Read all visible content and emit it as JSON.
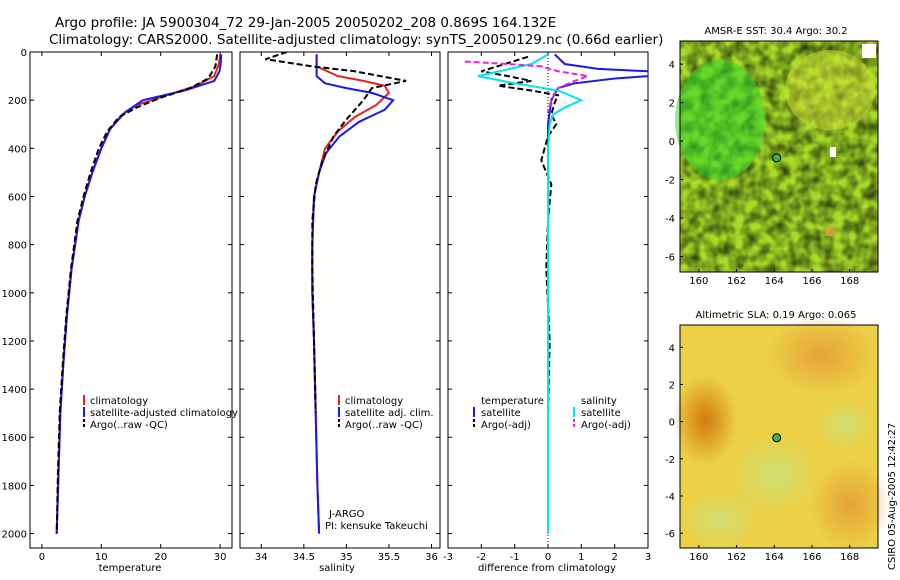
{
  "header": {
    "title_line1": "Argo profile: JA 5900304_72 29-Jan-2005 20050202_208 0.869S 164.132E",
    "title_line2": "Climatology: CARS2000. Satellite-adjusted climatology: synTS_20050129.nc (0.66d earlier)"
  },
  "credit": "CSIRO 05-Aug-2005 12:42:27",
  "colors": {
    "clim": "#e8201e",
    "sat": "#1a1ae6",
    "argo": "#000000",
    "sal_sat": "#00e8ee",
    "sal_argo": "#ee22dd"
  },
  "chart_data": [
    {
      "type": "line",
      "name": "temperature",
      "xlabel": "temperature",
      "xlim": [
        -2,
        32
      ],
      "ylim": [
        2060,
        0
      ],
      "xticks": [
        0,
        10,
        20,
        30
      ],
      "yticks": [
        0,
        200,
        400,
        600,
        800,
        1000,
        1200,
        1400,
        1600,
        1800,
        2000
      ],
      "legend": [
        "climatology",
        "satellite-adjusted climatology",
        "Argo(..raw -QC)"
      ],
      "series": [
        {
          "name": "climatology",
          "color": "clim",
          "dash": "",
          "x": [
            30.0,
            29.8,
            29.0,
            26.0,
            21.0,
            16.0,
            13.5,
            11.5,
            10.0,
            8.5,
            7.2,
            6.2,
            5.0,
            4.2,
            3.6,
            3.1,
            2.8,
            2.5
          ],
          "y": [
            10,
            50,
            100,
            140,
            180,
            220,
            260,
            320,
            400,
            500,
            600,
            700,
            900,
            1100,
            1300,
            1500,
            1750,
            2000
          ]
        },
        {
          "name": "satellite-adjusted climatology",
          "color": "sat",
          "dash": "",
          "x": [
            30.2,
            30.1,
            29.9,
            29.0,
            24.0,
            17.0,
            14.0,
            11.5,
            10.0,
            8.5,
            7.2,
            6.2,
            5.0,
            4.2,
            3.6,
            3.1,
            2.8,
            2.5
          ],
          "y": [
            10,
            50,
            80,
            120,
            160,
            200,
            250,
            320,
            400,
            500,
            600,
            700,
            900,
            1100,
            1300,
            1500,
            1750,
            2000
          ]
        },
        {
          "name": "Argo(..raw -QC)",
          "color": "argo",
          "dash": "6,3",
          "x": [
            29.5,
            29.2,
            28.0,
            25.0,
            20.0,
            16.0,
            13.0,
            11.0,
            9.6,
            8.2,
            7.0,
            6.0,
            4.9,
            4.1,
            3.5,
            3.0,
            2.7,
            2.5
          ],
          "y": [
            10,
            60,
            110,
            150,
            190,
            230,
            270,
            330,
            400,
            500,
            600,
            700,
            900,
            1100,
            1300,
            1500,
            1750,
            2000
          ]
        }
      ]
    },
    {
      "type": "line",
      "name": "salinity",
      "xlabel": "salinity",
      "xlim": [
        33.75,
        36.1
      ],
      "ylim": [
        2060,
        0
      ],
      "xticks": [
        34,
        34.5,
        35,
        35.5,
        36
      ],
      "yticks": [],
      "legend": [
        "climatology",
        "satellite adj. clim.",
        "Argo(..raw -QC)"
      ],
      "annotation": [
        "J-ARGO",
        "PI: kensuke Takeuchi"
      ],
      "series": [
        {
          "name": "climatology",
          "color": "clim",
          "dash": "",
          "x": [
            34.65,
            34.65,
            34.9,
            35.2,
            35.45,
            35.5,
            35.35,
            35.1,
            34.9,
            34.75,
            34.68,
            34.62,
            34.6,
            34.6,
            34.62,
            34.64,
            34.66,
            34.68
          ],
          "y": [
            10,
            60,
            100,
            120,
            140,
            170,
            220,
            270,
            330,
            400,
            500,
            600,
            800,
            1000,
            1200,
            1500,
            1800,
            2000
          ]
        },
        {
          "name": "satellite adj. clim.",
          "color": "sat",
          "dash": "",
          "x": [
            34.65,
            34.65,
            34.75,
            35.0,
            35.3,
            35.55,
            35.45,
            35.15,
            34.92,
            34.76,
            34.68,
            34.62,
            34.6,
            34.6,
            34.62,
            34.64,
            34.66,
            34.68
          ],
          "y": [
            10,
            100,
            130,
            150,
            170,
            200,
            240,
            290,
            350,
            420,
            500,
            600,
            800,
            1000,
            1200,
            1500,
            1800,
            2000
          ]
        },
        {
          "name": "Argo(..raw -QC)",
          "color": "argo",
          "dash": "6,3",
          "x": [
            34.3,
            34.05,
            34.6,
            35.1,
            35.4,
            35.7,
            35.3,
            35.2,
            35.0,
            34.85,
            34.72,
            34.64,
            34.6,
            34.6,
            34.62,
            34.64
          ],
          "y": [
            0,
            30,
            60,
            80,
            100,
            120,
            150,
            200,
            280,
            350,
            450,
            550,
            700,
            900,
            1200,
            1500
          ]
        }
      ]
    },
    {
      "type": "line",
      "name": "difference",
      "xlabel": "difference from climatology",
      "xlim": [
        -3,
        3
      ],
      "ylim": [
        2060,
        0
      ],
      "xticks": [
        -3,
        -2,
        -1,
        0,
        1,
        2,
        3
      ],
      "yticks": [],
      "legend_left": [
        "temperature",
        "satellite",
        "Argo(-adj)"
      ],
      "legend_right": [
        "salinity",
        "satellite",
        "Argo(-adj)"
      ],
      "series": [
        {
          "name": "temperature satellite",
          "color": "sat",
          "dash": "",
          "x": [
            0.2,
            0.5,
            1.5,
            3.0,
            3.1,
            3.0,
            2.0,
            0.8,
            0.3,
            0.1,
            0.0,
            0.0,
            0.0
          ],
          "y": [
            10,
            50,
            70,
            80,
            90,
            100,
            110,
            130,
            150,
            200,
            300,
            500,
            2000
          ]
        },
        {
          "name": "temperature Argo(-adj)",
          "color": "argo",
          "dash": "6,3",
          "x": [
            -0.6,
            -2.0,
            -1.2,
            -0.5,
            -1.5,
            -0.5,
            0.3,
            0.2,
            0.1,
            0.25,
            0.0,
            -0.2,
            0.1,
            0.0,
            -0.05,
            0.05,
            0.0
          ],
          "y": [
            20,
            80,
            100,
            120,
            140,
            160,
            180,
            210,
            260,
            300,
            350,
            450,
            550,
            700,
            900,
            1200,
            1500
          ]
        },
        {
          "name": "salinity satellite",
          "color": "sal_sat",
          "dash": "",
          "x": [
            0.0,
            -0.5,
            -2.1,
            -1.0,
            0.3,
            1.0,
            0.5,
            0.15,
            0.05,
            0.0,
            0.0,
            0.0
          ],
          "y": [
            10,
            50,
            100,
            130,
            160,
            200,
            230,
            260,
            300,
            400,
            600,
            2000
          ]
        },
        {
          "name": "salinity Argo(-adj)",
          "color": "sal_argo",
          "dash": "6,3",
          "x": [
            -2.5,
            -1.2,
            -0.2,
            0.3,
            1.2,
            0.8,
            0.3,
            0.1,
            0.0
          ],
          "y": [
            40,
            50,
            60,
            80,
            100,
            120,
            150,
            200,
            250
          ]
        }
      ]
    },
    {
      "type": "heatmap",
      "name": "sst_map",
      "title": "AMSR-E SST: 30.4 Argo: 30.2",
      "xlim": [
        159,
        169.5
      ],
      "ylim": [
        -6.8,
        5.2
      ],
      "xticks": [
        160,
        162,
        164,
        166,
        168
      ],
      "yticks": [
        -6,
        -4,
        -2,
        0,
        2,
        4
      ],
      "marker": {
        "lon": 164.13,
        "lat": -0.87
      }
    },
    {
      "type": "heatmap",
      "name": "sla_map",
      "title": "Altimetric SLA: 0.19 Argo: 0.065",
      "xlim": [
        159,
        169.5
      ],
      "ylim": [
        -6.8,
        5.2
      ],
      "xticks": [
        160,
        162,
        164,
        166,
        168
      ],
      "yticks": [
        -6,
        -4,
        -2,
        0,
        2,
        4
      ],
      "marker": {
        "lon": 164.13,
        "lat": -0.87
      }
    }
  ]
}
